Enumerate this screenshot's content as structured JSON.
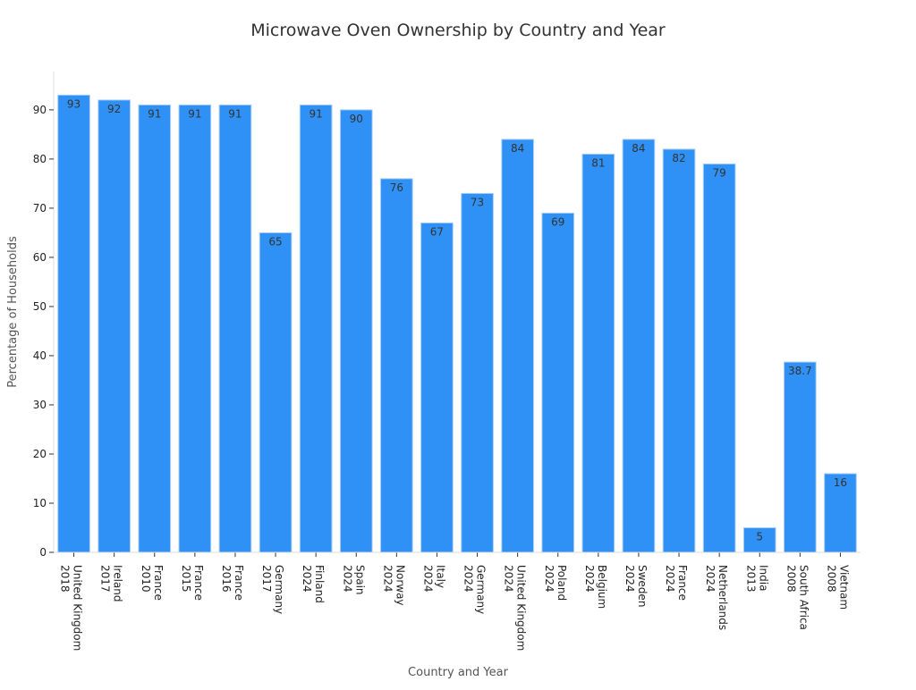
{
  "chart_data": {
    "type": "bar",
    "title": "Microwave Oven Ownership by Country and Year",
    "xlabel": "Country and Year",
    "ylabel": "Percentage of Households",
    "ylim": [
      0,
      97.8
    ],
    "yticks": [
      0,
      10,
      20,
      30,
      40,
      50,
      60,
      70,
      80,
      90
    ],
    "grid": false,
    "bar_color": "#2f91f5",
    "categories": [
      [
        "United Kingdom",
        "2018"
      ],
      [
        "Ireland",
        "2017"
      ],
      [
        "France",
        "2010"
      ],
      [
        "France",
        "2015"
      ],
      [
        "France",
        "2016"
      ],
      [
        "Germany",
        "2017"
      ],
      [
        "Finland",
        "2024"
      ],
      [
        "Spain",
        "2024"
      ],
      [
        "Norway",
        "2024"
      ],
      [
        "Italy",
        "2024"
      ],
      [
        "Germany",
        "2024"
      ],
      [
        "United Kingdom",
        "2024"
      ],
      [
        "Poland",
        "2024"
      ],
      [
        "Belgium",
        "2024"
      ],
      [
        "Sweden",
        "2024"
      ],
      [
        "France",
        "2024"
      ],
      [
        "Netherlands",
        "2024"
      ],
      [
        "India",
        "2013"
      ],
      [
        "South Africa",
        "2008"
      ],
      [
        "Vietnam",
        "2008"
      ]
    ],
    "values": [
      93,
      92,
      91,
      91,
      91,
      65,
      91,
      90,
      76,
      67,
      73,
      84,
      69,
      81,
      84,
      82,
      79,
      5,
      38.7,
      16
    ],
    "data_labels": [
      "93",
      "92",
      "91",
      "91",
      "91",
      "65",
      "91",
      "90",
      "76",
      "67",
      "73",
      "84",
      "69",
      "81",
      "84",
      "82",
      "79",
      "5",
      "38.7",
      "16"
    ]
  }
}
